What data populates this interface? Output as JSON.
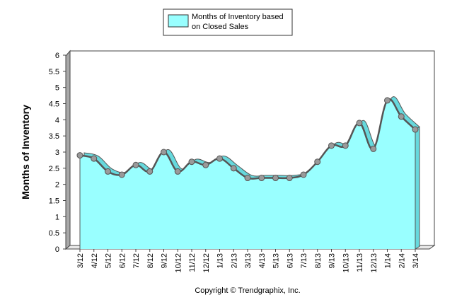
{
  "chart_data": {
    "type": "area",
    "title": "",
    "legend": {
      "label_line1": "Months of Inventory based",
      "label_line2": "on Closed Sales",
      "placement": "top"
    },
    "ylabel": "Months of Inventory",
    "xlabel": "",
    "ylim": [
      0,
      6
    ],
    "yticks": [
      "0",
      "0.5",
      "1",
      "1.5",
      "2",
      "2.5",
      "3",
      "3.5",
      "4",
      "4.5",
      "5",
      "5.5",
      "6"
    ],
    "categories": [
      "3/12",
      "4/12",
      "5/12",
      "6/12",
      "7/12",
      "8/12",
      "9/12",
      "10/12",
      "11/12",
      "12/12",
      "1/13",
      "2/13",
      "3/13",
      "4/13",
      "5/13",
      "6/13",
      "7/13",
      "8/13",
      "9/13",
      "10/13",
      "11/13",
      "12/13",
      "1/14",
      "2/14",
      "3/14"
    ],
    "series": [
      {
        "name": "Months of Inventory based on Closed Sales",
        "values": [
          2.9,
          2.8,
          2.4,
          2.3,
          2.6,
          2.4,
          3.0,
          2.4,
          2.7,
          2.6,
          2.8,
          2.5,
          2.2,
          2.2,
          2.2,
          2.2,
          2.3,
          2.7,
          3.2,
          3.2,
          3.9,
          3.1,
          4.6,
          4.1,
          3.7
        ]
      }
    ],
    "colors": {
      "fill": "#99FFFF",
      "fill_side": "#66D9DD",
      "line": "#555555",
      "marker": "#9A9A9A",
      "wall_left": "#A8A8A8",
      "floor": "#E8E8E8"
    },
    "grid": false
  },
  "footer": {
    "copyright": "Copyright © Trendgraphix, Inc."
  }
}
